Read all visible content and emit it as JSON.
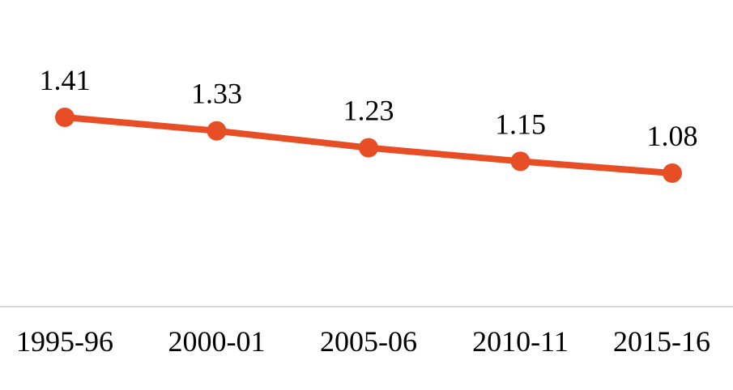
{
  "chart_data": {
    "type": "line",
    "categories": [
      "1995-96",
      "2000-01",
      "2005-06",
      "2010-11",
      "2015-16"
    ],
    "values": [
      1.41,
      1.33,
      1.23,
      1.15,
      1.08
    ],
    "data_labels": [
      "1.41",
      "1.33",
      "1.23",
      "1.15",
      "1.08"
    ],
    "title": "",
    "xlabel": "",
    "ylabel": "",
    "ylim": [
      0.0,
      1.7
    ],
    "grid": false,
    "legend": "none",
    "colors": {
      "line": "#E84E25",
      "axis": "#D9D9D9",
      "text": "#000000"
    }
  }
}
